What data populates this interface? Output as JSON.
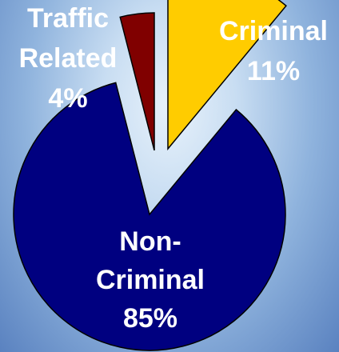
{
  "chart_data": {
    "type": "pie",
    "exploded": true,
    "slices": [
      {
        "label_lines": [
          "Criminal",
          "11%"
        ],
        "value": 11,
        "color": "#FFCC00"
      },
      {
        "label_lines": [
          "Non-",
          "Criminal",
          "85%"
        ],
        "value": 85,
        "color": "#000080"
      },
      {
        "label_lines": [
          "Traffic",
          "Related",
          "4%"
        ],
        "value": 4,
        "color": "#800000"
      }
    ]
  }
}
